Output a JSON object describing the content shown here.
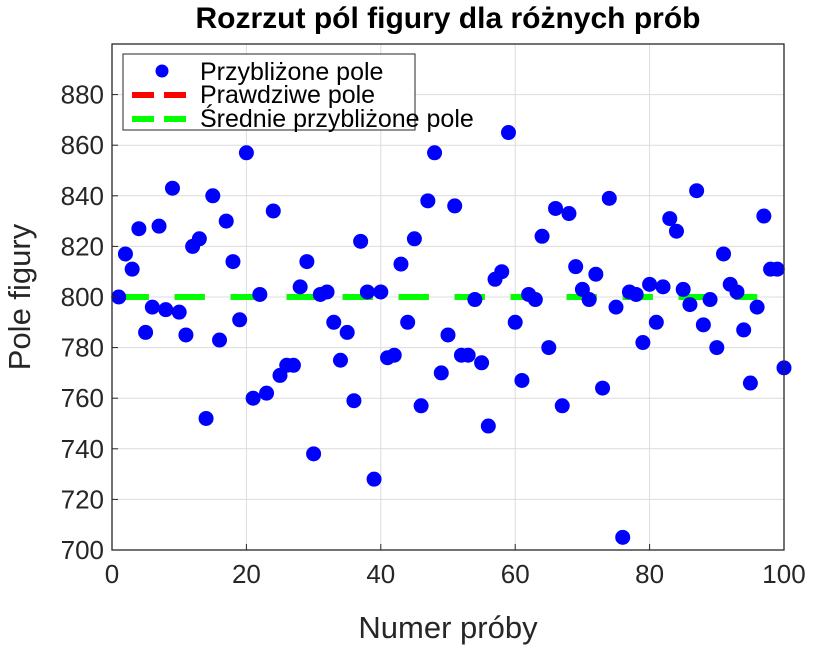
{
  "chart_data": {
    "type": "scatter",
    "title": "Rozrzut pól figury dla różnych prób",
    "xlabel": "Numer próby",
    "ylabel": "Pole figury",
    "xlim": [
      0,
      100
    ],
    "ylim": [
      700,
      900
    ],
    "xticks": [
      "0",
      "20",
      "40",
      "60",
      "80",
      "100"
    ],
    "yticks": [
      "700",
      "720",
      "740",
      "760",
      "780",
      "800",
      "820",
      "840",
      "860",
      "880"
    ],
    "grid": true,
    "legend_position": "top-left",
    "colors": {
      "points": "#0000ff",
      "true_line": "#ff0000",
      "mean_line": "#00ff00"
    },
    "series": [
      {
        "name": "Przybliżone pole",
        "kind": "points",
        "x": [
          1,
          2,
          3,
          4,
          5,
          6,
          7,
          8,
          9,
          10,
          11,
          12,
          13,
          14,
          15,
          16,
          17,
          18,
          19,
          20,
          21,
          22,
          23,
          24,
          25,
          26,
          27,
          28,
          29,
          30,
          31,
          32,
          33,
          34,
          35,
          36,
          37,
          38,
          39,
          40,
          41,
          42,
          43,
          44,
          45,
          46,
          47,
          48,
          49,
          50,
          51,
          52,
          53,
          54,
          55,
          56,
          57,
          58,
          59,
          60,
          61,
          62,
          63,
          64,
          65,
          66,
          67,
          68,
          69,
          70,
          71,
          72,
          73,
          74,
          75,
          76,
          77,
          78,
          79,
          80,
          81,
          82,
          83,
          84,
          85,
          86,
          87,
          88,
          89,
          90,
          91,
          92,
          93,
          94,
          95,
          96,
          97,
          98,
          99,
          100
        ],
        "y": [
          800,
          817,
          811,
          827,
          786,
          796,
          828,
          795,
          843,
          794,
          785,
          820,
          823,
          752,
          840,
          783,
          830,
          814,
          791,
          857,
          760,
          801,
          762,
          834,
          769,
          773,
          773,
          804,
          814,
          738,
          801,
          802,
          790,
          775,
          786,
          759,
          822,
          802,
          728,
          802,
          776,
          777,
          813,
          790,
          823,
          757,
          838,
          857,
          770,
          785,
          836,
          777,
          777,
          799,
          774,
          749,
          807,
          810,
          865,
          790,
          767,
          801,
          799,
          824,
          780,
          835,
          757,
          833,
          812,
          803,
          799,
          809,
          764,
          839,
          796,
          705,
          802,
          801,
          782,
          805,
          790,
          804,
          831,
          826,
          803,
          797,
          842,
          789,
          799,
          780,
          817,
          805,
          802,
          787,
          766,
          796,
          832,
          811,
          811,
          772
        ]
      },
      {
        "name": "Prawdziwe pole",
        "kind": "line",
        "x": [
          1,
          96
        ],
        "y": [
          800,
          800
        ]
      },
      {
        "name": "Średnie przybliżone pole",
        "kind": "line",
        "x": [
          1,
          96
        ],
        "y": [
          800,
          800
        ]
      }
    ]
  }
}
